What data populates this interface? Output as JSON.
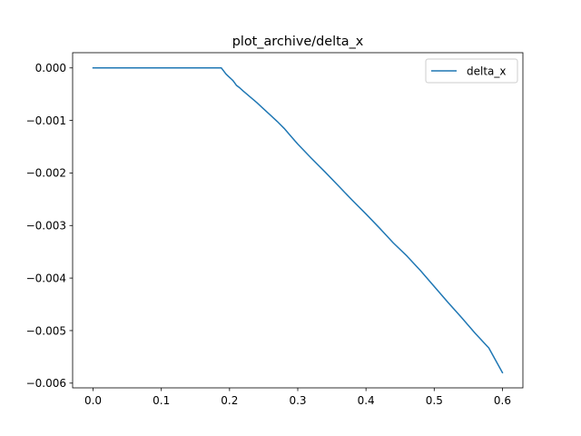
{
  "chart_data": {
    "type": "line",
    "title": "plot_archive/delta_x",
    "xlabel": "",
    "ylabel": "",
    "xlim": [
      -0.03,
      0.63
    ],
    "ylim": [
      -0.00609,
      0.00029
    ],
    "x_ticks": [
      0.0,
      0.1,
      0.2,
      0.3,
      0.4,
      0.5,
      0.6
    ],
    "x_tick_labels": [
      "0.0",
      "0.1",
      "0.2",
      "0.3",
      "0.4",
      "0.5",
      "0.6"
    ],
    "y_ticks": [
      0.0,
      -0.001,
      -0.002,
      -0.003,
      -0.004,
      -0.005,
      -0.006
    ],
    "y_tick_labels": [
      "0.000",
      "−0.001",
      "−0.002",
      "−0.003",
      "−0.004",
      "−0.005",
      "−0.006"
    ],
    "grid": false,
    "legend": {
      "position": "top-right",
      "entries": [
        "delta_x"
      ]
    },
    "series": [
      {
        "name": "delta_x",
        "color": "#1f77b4",
        "x": [
          0.0,
          0.05,
          0.1,
          0.15,
          0.188,
          0.195,
          0.2,
          0.205,
          0.21,
          0.215,
          0.22,
          0.23,
          0.24,
          0.25,
          0.26,
          0.27,
          0.28,
          0.29,
          0.3,
          0.32,
          0.34,
          0.36,
          0.38,
          0.4,
          0.42,
          0.44,
          0.46,
          0.48,
          0.5,
          0.52,
          0.54,
          0.56,
          0.58,
          0.6
        ],
        "y": [
          0.0,
          0.0,
          0.0,
          0.0,
          0.0,
          -0.00012,
          -0.00018,
          -0.00024,
          -0.00033,
          -0.00038,
          -0.00044,
          -0.00055,
          -0.00066,
          -0.00078,
          -0.0009,
          -0.00102,
          -0.00115,
          -0.0013,
          -0.00145,
          -0.00172,
          -0.00198,
          -0.00225,
          -0.00252,
          -0.00278,
          -0.00305,
          -0.00333,
          -0.00358,
          -0.00386,
          -0.00416,
          -0.00446,
          -0.00475,
          -0.00505,
          -0.00533,
          -0.0058
        ]
      }
    ]
  }
}
